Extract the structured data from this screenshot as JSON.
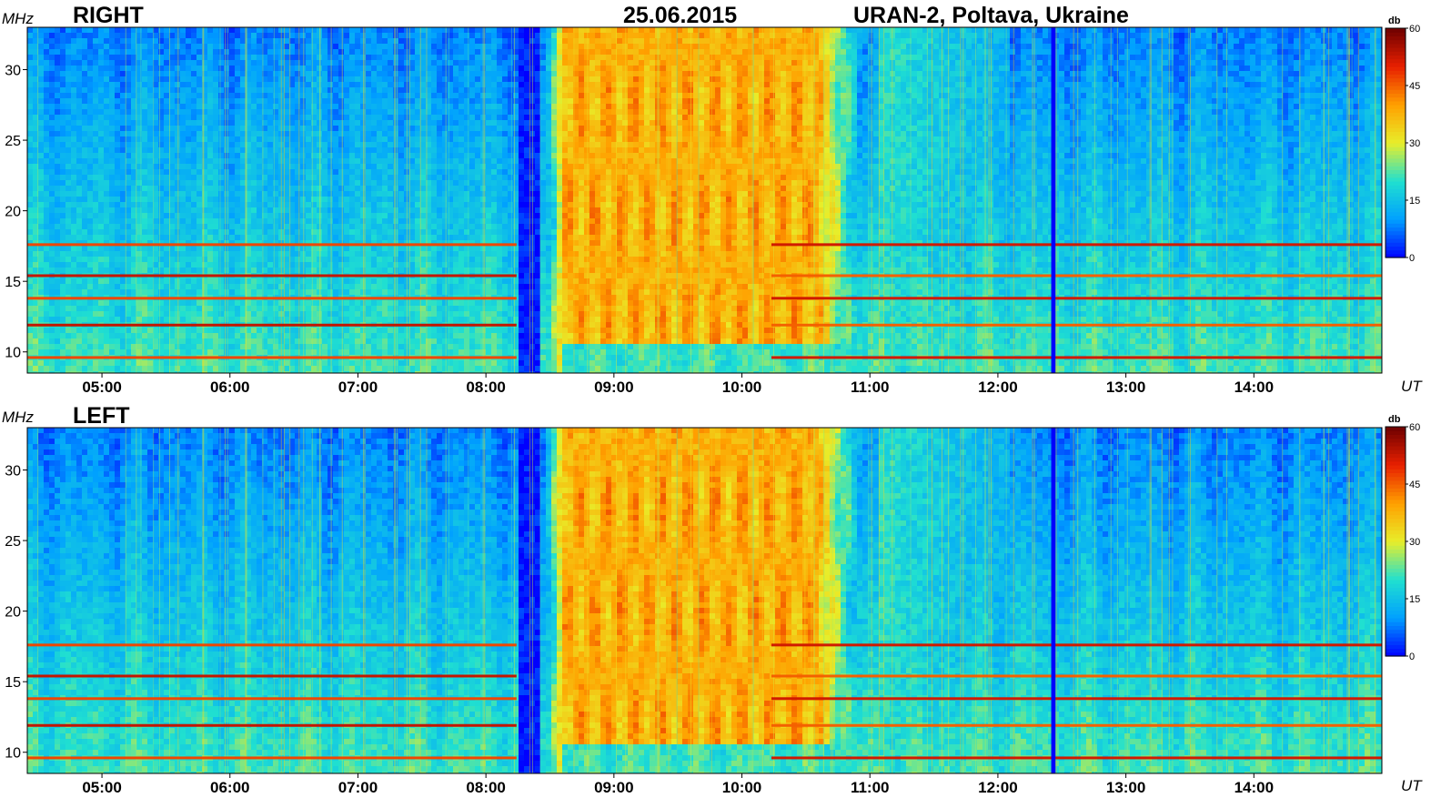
{
  "title": {
    "date": "25.06.2015",
    "station": "URAN-2, Poltava, Ukraine"
  },
  "chart_data": [
    {
      "type": "heatmap",
      "panel_label": "RIGHT",
      "ylabel": "MHz",
      "xlabel": "UT",
      "colorbar_label": "db",
      "x_range": [
        "04:25",
        "15:00"
      ],
      "x_ticks": [
        "05:00",
        "06:00",
        "07:00",
        "08:00",
        "09:00",
        "10:00",
        "11:00",
        "12:00",
        "13:00",
        "14:00"
      ],
      "ylim": [
        8.5,
        33
      ],
      "y_ticks": [
        10,
        15,
        20,
        25,
        30
      ],
      "colorbar_range": [
        0,
        60
      ],
      "colorbar_ticks": [
        0,
        15,
        30,
        45,
        60
      ],
      "colormap": [
        "#0000ff",
        "#00a0ff",
        "#20e0d0",
        "#e8ee2a",
        "#ffa000",
        "#e82000",
        "#6e0000"
      ],
      "interference_bands_mhz": [
        9.6,
        11.9,
        13.8,
        15.4,
        17.6
      ],
      "features": [
        {
          "name": "low-level gap",
          "start": "08:15",
          "end": "08:25",
          "level_db": 2
        },
        {
          "name": "type IV burst",
          "start": "08:25",
          "end": "11:05",
          "freq_mhz": [
            8.5,
            33
          ],
          "level_db": 38
        },
        {
          "name": "receiver dropout",
          "start": "12:25",
          "end": "12:27",
          "level_db": 0
        }
      ]
    },
    {
      "type": "heatmap",
      "panel_label": "LEFT",
      "ylabel": "MHz",
      "xlabel": "UT",
      "colorbar_label": "db",
      "x_range": [
        "04:25",
        "15:00"
      ],
      "x_ticks": [
        "05:00",
        "06:00",
        "07:00",
        "08:00",
        "09:00",
        "10:00",
        "11:00",
        "12:00",
        "13:00",
        "14:00"
      ],
      "ylim": [
        8.5,
        33
      ],
      "y_ticks": [
        10,
        15,
        20,
        25,
        30
      ],
      "colorbar_range": [
        0,
        60
      ],
      "colorbar_ticks": [
        0,
        15,
        30,
        45,
        60
      ],
      "colormap": [
        "#0000ff",
        "#00a0ff",
        "#20e0d0",
        "#e8ee2a",
        "#ffa000",
        "#e82000",
        "#6e0000"
      ],
      "interference_bands_mhz": [
        9.6,
        11.9,
        13.8,
        15.4,
        17.6
      ],
      "features": [
        {
          "name": "low-level gap",
          "start": "08:15",
          "end": "08:25",
          "level_db": 2
        },
        {
          "name": "type IV burst",
          "start": "08:25",
          "end": "11:05",
          "freq_mhz": [
            8.5,
            33
          ],
          "level_db": 38
        },
        {
          "name": "receiver dropout",
          "start": "12:25",
          "end": "12:27",
          "level_db": 0
        }
      ]
    }
  ]
}
